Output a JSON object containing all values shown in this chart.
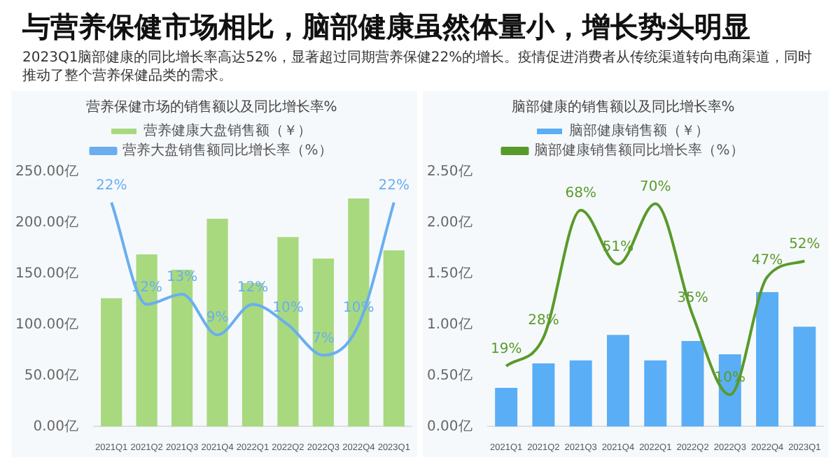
{
  "chart_data": [
    {
      "type": "bar",
      "title": "营养保健市场的销售额以及同比增长率%",
      "annotations": [
        "与营养保健市场相比，脑部健康虽然体量小，增长势头明显",
        "2023Q1脑部健康的同比增长率高达52%，显著超过同期营养保健22%的增长。疫情促进消费者从传统渠道转向电商渠道，同时推动了整个营养保健品类的需求。"
      ],
      "categories": [
        "2021Q1",
        "2021Q2",
        "2021Q3",
        "2021Q4",
        "2022Q1",
        "2022Q2",
        "2022Q3",
        "2022Q4",
        "2023Q1"
      ],
      "series": [
        {
          "name": "营养健康大盘销售额（￥）",
          "type": "bar",
          "color": "#a8d97f",
          "values": [
            126,
            169,
            154,
            204,
            141,
            186,
            165,
            224,
            173
          ]
        },
        {
          "name": "营养大盘销售额同比增长率（%）",
          "type": "line",
          "axis": "y2",
          "color": "#6aaef0",
          "values": [
            22,
            12,
            13,
            9,
            12,
            10,
            7,
            10,
            22
          ],
          "value_labels": [
            "22%",
            "12%",
            "13%",
            "9%",
            "12%",
            "10%",
            "7%",
            "10%",
            "22%"
          ]
        }
      ],
      "ylim": [
        0,
        250
      ],
      "yticks": [
        {
          "value": 0,
          "label": "0.00亿"
        },
        {
          "value": 50,
          "label": "50.00亿"
        },
        {
          "value": 100,
          "label": "100.00亿"
        },
        {
          "value": 150,
          "label": "150.00亿"
        },
        {
          "value": 200,
          "label": "200.00亿"
        },
        {
          "value": 250,
          "label": "250.00亿"
        }
      ],
      "grid": false,
      "legend": "top"
    },
    {
      "type": "bar",
      "title": "脑部健康的销售额以及同比增长率%",
      "categories": [
        "2021Q1",
        "2021Q2",
        "2021Q3",
        "2021Q4",
        "2022Q1",
        "2022Q2",
        "2022Q3",
        "2022Q4",
        "2023Q1"
      ],
      "series": [
        {
          "name": "脑部健康销售额（￥）",
          "type": "bar",
          "color": "#5aaef5",
          "values": [
            0.38,
            0.62,
            0.65,
            0.9,
            0.65,
            0.84,
            0.71,
            1.32,
            0.98
          ]
        },
        {
          "name": "脑部健康销售额同比增长率（%）",
          "type": "line",
          "axis": "y2",
          "color": "#5a9a2a",
          "values": [
            19,
            28,
            68,
            51,
            70,
            35,
            10,
            47,
            52
          ],
          "value_labels": [
            "19%",
            "28%",
            "68%",
            "51%",
            "70%",
            "35%",
            "10%",
            "47%",
            "52%"
          ]
        }
      ],
      "ylim": [
        0,
        2.5
      ],
      "yticks": [
        {
          "value": 0,
          "label": "0.00亿"
        },
        {
          "value": 0.5,
          "label": "0.50亿"
        },
        {
          "value": 1,
          "label": "1.00亿"
        },
        {
          "value": 1.5,
          "label": "1.50亿"
        },
        {
          "value": 2,
          "label": "2.00亿"
        },
        {
          "value": 2.5,
          "label": "2.50亿"
        }
      ],
      "grid": false,
      "legend": "top"
    }
  ]
}
